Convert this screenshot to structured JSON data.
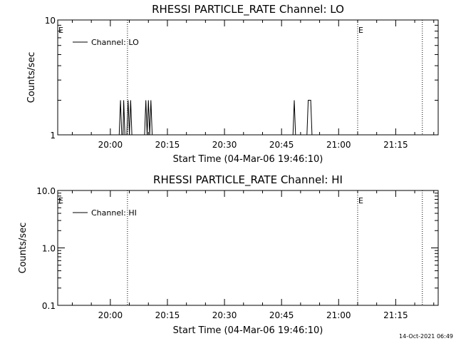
{
  "chart_data": [
    {
      "type": "line",
      "title": "RHESSI PARTICLE_RATE Channel: LO",
      "xlabel": "Start Time (04-Mar-06 19:46:10)",
      "ylabel": "Counts/sec",
      "y_scale": "log",
      "ylim": [
        1,
        10
      ],
      "ytick_labels": [
        "1",
        "10"
      ],
      "xlim": [
        "19:46:10",
        "21:26:10"
      ],
      "xtick_labels": [
        "20:00",
        "20:15",
        "20:30",
        "20:45",
        "21:00",
        "21:15"
      ],
      "legend": {
        "position": "top-left",
        "entries": [
          "Channel: LO"
        ]
      },
      "series": [
        {
          "name": "Channel: LO",
          "x": [
            "20:02:20",
            "20:02:40",
            "20:03:00",
            "20:03:20",
            "20:03:30",
            "20:03:50",
            "20:04:20",
            "20:04:40",
            "20:05:00",
            "20:05:20",
            "20:05:40",
            "20:06:00",
            "20:09:00",
            "20:09:20",
            "20:09:40",
            "20:10:00",
            "20:10:20",
            "20:10:40",
            "20:11:00",
            "20:48:00",
            "20:48:20",
            "20:48:40",
            "20:51:40",
            "20:52:00",
            "20:52:20",
            "20:52:40",
            "20:53:00"
          ],
          "y": [
            1,
            2,
            1,
            1,
            2,
            1,
            1,
            2,
            1,
            2,
            1,
            1,
            1,
            2,
            1,
            2,
            1,
            2,
            1,
            1,
            2,
            1,
            1,
            2,
            2,
            2,
            1
          ]
        }
      ],
      "annotations": [
        {
          "type": "vline",
          "x": "20:04:30",
          "style": "dotted",
          "label": ""
        },
        {
          "type": "vline",
          "x": "21:05:00",
          "style": "dotted",
          "label": "E"
        },
        {
          "type": "vline",
          "x": "21:22:00",
          "style": "dotted",
          "label": ""
        },
        {
          "type": "text",
          "x": "19:46:10",
          "text": "E"
        }
      ]
    },
    {
      "type": "line",
      "title": "RHESSI PARTICLE_RATE Channel: HI",
      "xlabel": "Start Time (04-Mar-06 19:46:10)",
      "ylabel": "Counts/sec",
      "y_scale": "log",
      "ylim": [
        0.1,
        10
      ],
      "ytick_labels": [
        "0.1",
        "1.0",
        "10.0"
      ],
      "xlim": [
        "19:46:10",
        "21:26:10"
      ],
      "xtick_labels": [
        "20:00",
        "20:15",
        "20:30",
        "20:45",
        "21:00",
        "21:15"
      ],
      "legend": {
        "position": "top-left",
        "entries": [
          "Channel: HI"
        ]
      },
      "series": [
        {
          "name": "Channel: HI",
          "x": [],
          "y": []
        }
      ],
      "annotations": [
        {
          "type": "vline",
          "x": "20:04:30",
          "style": "dotted",
          "label": ""
        },
        {
          "type": "vline",
          "x": "21:05:00",
          "style": "dotted",
          "label": "E"
        },
        {
          "type": "vline",
          "x": "21:22:00",
          "style": "dotted",
          "label": ""
        },
        {
          "type": "text",
          "x": "19:46:10",
          "text": "E"
        }
      ]
    }
  ],
  "footer": {
    "timestamp": "14-Oct-2021 06:49"
  },
  "colors": {
    "background": "#ffffff",
    "foreground": "#000000"
  }
}
